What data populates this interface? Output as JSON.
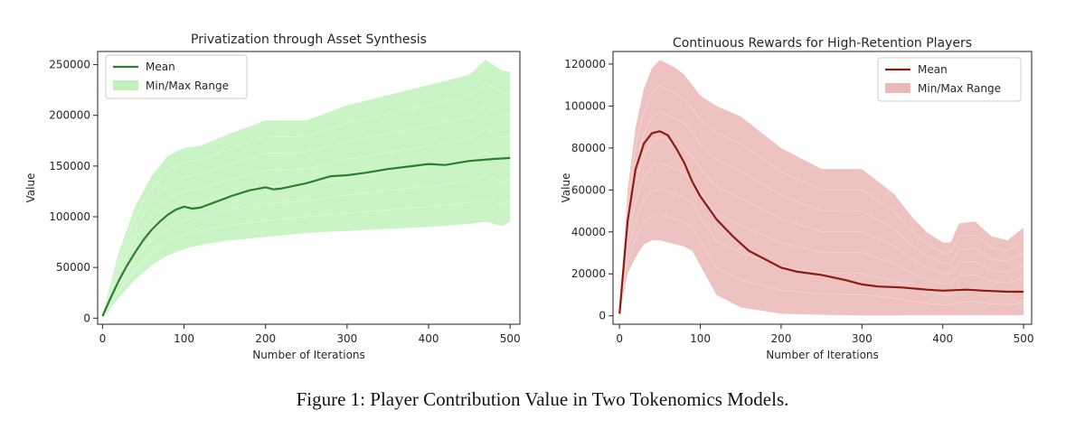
{
  "colors": {
    "left_line": "#2e7d2e",
    "left_fill": "#a8eca0",
    "right_line": "#8b1c14",
    "right_fill": "#e29a98"
  },
  "chart_data": [
    {
      "type": "line",
      "title": "Privatization through Asset Synthesis",
      "xlabel": "Number of Iterations",
      "ylabel": "Value",
      "xlim": [
        -6,
        512
      ],
      "ylim": [
        -6000,
        263000
      ],
      "xticks": [
        0,
        100,
        200,
        300,
        400,
        500
      ],
      "yticks": [
        0,
        50000,
        100000,
        150000,
        200000,
        250000
      ],
      "grid": false,
      "legend_position": "top-left",
      "legend": [
        "Mean",
        "Min/Max Range"
      ],
      "series": [
        {
          "name": "Mean",
          "x": [
            0,
            10,
            20,
            30,
            40,
            50,
            60,
            70,
            80,
            90,
            100,
            110,
            120,
            140,
            160,
            180,
            200,
            210,
            220,
            250,
            280,
            300,
            320,
            350,
            380,
            400,
            420,
            450,
            480,
            500
          ],
          "y": [
            2000,
            20000,
            37000,
            52000,
            65000,
            77000,
            87000,
            95000,
            102000,
            107000,
            110000,
            108000,
            109000,
            115000,
            121000,
            126000,
            129000,
            127000,
            128000,
            133000,
            140000,
            141000,
            143000,
            147000,
            150000,
            152000,
            151000,
            155000,
            157000,
            158000
          ]
        },
        {
          "name": "Min/Max Range",
          "x": [
            0,
            10,
            20,
            40,
            60,
            80,
            100,
            120,
            150,
            200,
            250,
            300,
            350,
            400,
            450,
            470,
            490,
            500
          ],
          "max": [
            5000,
            35000,
            65000,
            110000,
            140000,
            160000,
            168000,
            170000,
            180000,
            195000,
            195000,
            210000,
            220000,
            230000,
            240000,
            255000,
            244000,
            243000
          ],
          "min": [
            0,
            10000,
            20000,
            38000,
            52000,
            62000,
            68000,
            72000,
            76000,
            80000,
            84000,
            86000,
            88000,
            90000,
            93000,
            95000,
            91000,
            95000
          ]
        }
      ]
    },
    {
      "type": "line",
      "title": "Continuous Rewards for High-Retention Players",
      "xlabel": "Number of Iterations",
      "ylabel": "Value",
      "xlim": [
        -8,
        510
      ],
      "ylim": [
        -4000,
        126000
      ],
      "xticks": [
        0,
        100,
        200,
        300,
        400,
        500
      ],
      "yticks": [
        0,
        20000,
        40000,
        60000,
        80000,
        100000,
        120000
      ],
      "grid": false,
      "legend_position": "top-right",
      "legend": [
        "Mean",
        "Min/Max Range"
      ],
      "series": [
        {
          "name": "Mean",
          "x": [
            0,
            10,
            20,
            30,
            40,
            50,
            60,
            70,
            80,
            90,
            100,
            120,
            140,
            160,
            180,
            200,
            220,
            250,
            280,
            300,
            320,
            350,
            380,
            400,
            430,
            450,
            480,
            500
          ],
          "y": [
            1000,
            45000,
            70000,
            82000,
            87000,
            88000,
            86000,
            80000,
            73000,
            64000,
            57000,
            46000,
            38000,
            31000,
            27000,
            23000,
            21000,
            19500,
            17000,
            15000,
            14000,
            13500,
            12500,
            12000,
            12500,
            12000,
            11500,
            11500
          ]
        },
        {
          "name": "Min/Max Range",
          "x": [
            0,
            10,
            20,
            30,
            40,
            50,
            60,
            70,
            80,
            90,
            100,
            120,
            150,
            200,
            250,
            300,
            340,
            360,
            380,
            400,
            410,
            420,
            440,
            460,
            480,
            500
          ],
          "max": [
            2000,
            60000,
            90000,
            108000,
            118000,
            122000,
            120000,
            118000,
            115000,
            110000,
            105000,
            100000,
            95000,
            80000,
            70000,
            70000,
            58000,
            48000,
            40000,
            35000,
            35000,
            44000,
            45000,
            38000,
            36000,
            42000
          ],
          "min": [
            0,
            20000,
            28000,
            34000,
            36000,
            36000,
            35000,
            34000,
            33000,
            31000,
            24000,
            10000,
            4000,
            1000,
            500,
            200,
            200,
            300,
            300,
            300,
            300,
            300,
            300,
            300,
            300,
            300
          ]
        }
      ]
    }
  ],
  "caption": "Figure 1: Player Contribution Value in Two Tokenomics Models."
}
